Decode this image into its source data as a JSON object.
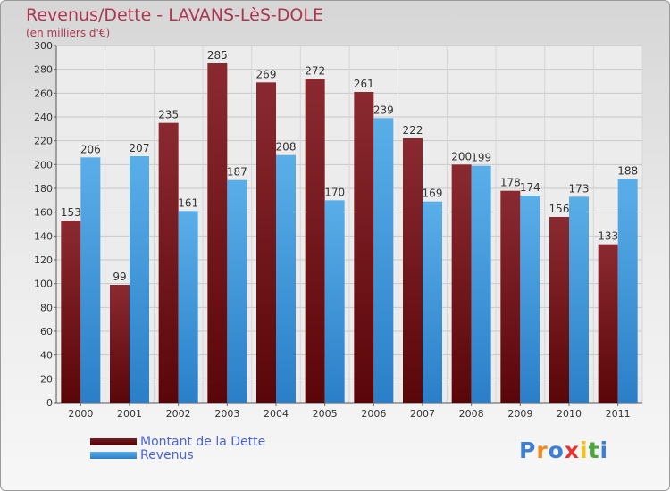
{
  "title": "Revenus/Dette - LAVANS-LèS-DOLE",
  "subtitle": "(en milliers d'€)",
  "chart_data": {
    "type": "bar",
    "categories": [
      "2000",
      "2001",
      "2002",
      "2003",
      "2004",
      "2005",
      "2006",
      "2007",
      "2008",
      "2009",
      "2010",
      "2011"
    ],
    "series": [
      {
        "name": "Montant de la Dette",
        "values": [
          153,
          99,
          235,
          285,
          269,
          272,
          261,
          222,
          200,
          178,
          156,
          133
        ],
        "color": "#6b0d12"
      },
      {
        "name": "Revenus",
        "values": [
          206,
          207,
          161,
          187,
          208,
          170,
          239,
          169,
          199,
          174,
          173,
          188
        ],
        "color": "#2e86d0"
      }
    ],
    "yticks": [
      0,
      20,
      40,
      60,
      80,
      100,
      120,
      140,
      160,
      180,
      200,
      220,
      240,
      260,
      280,
      300
    ],
    "ylim": [
      0,
      300
    ],
    "grid": true,
    "legend": "bottom-left"
  },
  "legend": {
    "items": [
      {
        "label": "Montant de la Dette",
        "color": "#6b0d12"
      },
      {
        "label": "Revenus",
        "color": "#3a96e0"
      }
    ]
  },
  "logo": {
    "text": "Proxiti",
    "letters": [
      {
        "char": "P",
        "color": "#3d7fd4"
      },
      {
        "char": "r",
        "color": "#f08a1e"
      },
      {
        "char": "o",
        "color": "#3d7fd4"
      },
      {
        "char": "x",
        "color": "#e8322b"
      },
      {
        "char": "i",
        "color": "#f2c21a"
      },
      {
        "char": "t",
        "color": "#49a83c"
      },
      {
        "char": "i",
        "color": "#3d7fd4"
      }
    ]
  }
}
